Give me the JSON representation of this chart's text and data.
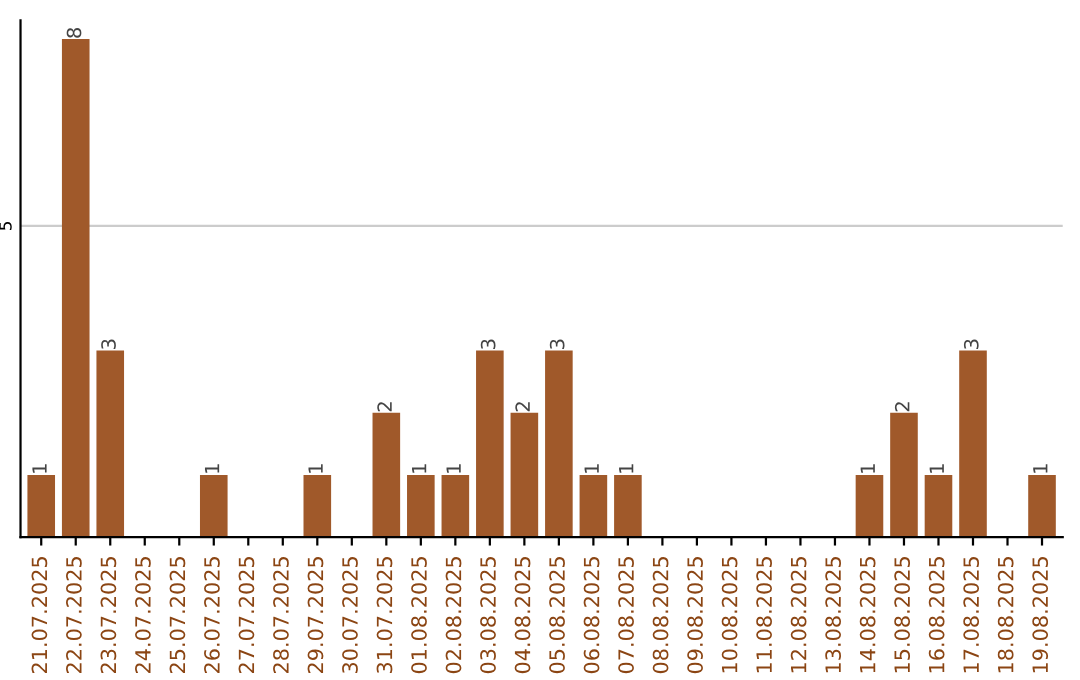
{
  "chart_data": {
    "type": "bar",
    "categories": [
      "21.07.2025",
      "22.07.2025",
      "23.07.2025",
      "24.07.2025",
      "25.07.2025",
      "26.07.2025",
      "27.07.2025",
      "28.07.2025",
      "29.07.2025",
      "30.07.2025",
      "31.07.2025",
      "01.08.2025",
      "02.08.2025",
      "03.08.2025",
      "04.08.2025",
      "05.08.2025",
      "06.08.2025",
      "07.08.2025",
      "08.08.2025",
      "09.08.2025",
      "10.08.2025",
      "11.08.2025",
      "12.08.2025",
      "13.08.2025",
      "14.08.2025",
      "15.08.2025",
      "16.08.2025",
      "17.08.2025",
      "18.08.2025",
      "19.08.2025"
    ],
    "values": [
      1,
      8,
      3,
      0,
      0,
      1,
      0,
      0,
      1,
      0,
      2,
      1,
      1,
      3,
      2,
      3,
      1,
      1,
      0,
      0,
      0,
      0,
      0,
      0,
      1,
      2,
      1,
      3,
      0,
      1
    ],
    "value_labels": [
      "1",
      "8",
      "3",
      null,
      null,
      "1",
      null,
      null,
      "1",
      null,
      "2",
      "1",
      "1",
      "3",
      "2",
      "3",
      "1",
      "1",
      null,
      null,
      null,
      null,
      null,
      null,
      "1",
      "2",
      "1",
      "3",
      null,
      "1"
    ],
    "color": "#a0592a",
    "ylim": [
      0,
      8.3
    ],
    "yticks": [
      5
    ],
    "grid": "y"
  }
}
